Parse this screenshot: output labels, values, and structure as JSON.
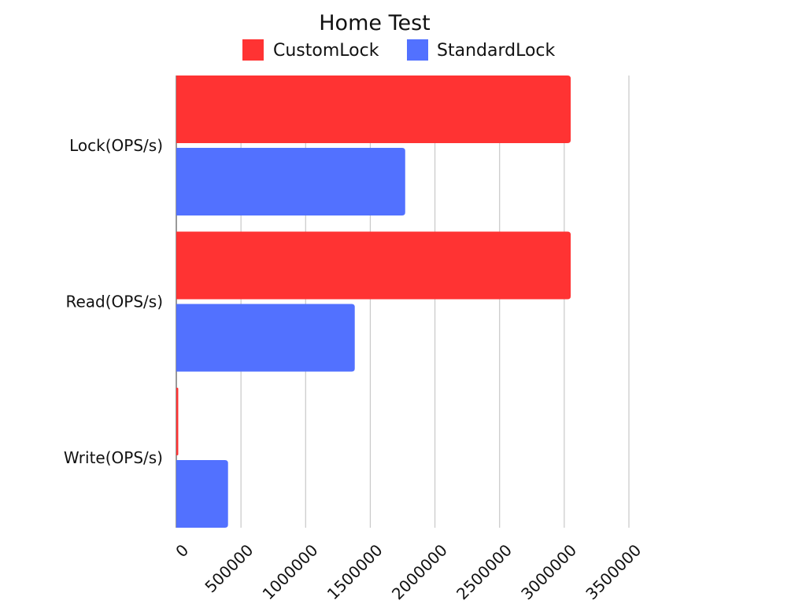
{
  "chart_data": {
    "type": "bar",
    "orientation": "horizontal",
    "title": "Home Test",
    "categories": [
      "Lock(OPS/s)",
      "Read(OPS/s)",
      "Write(OPS/s)"
    ],
    "series": [
      {
        "name": "CustomLock",
        "color": "#ff3333",
        "values": [
          3050000,
          3050000,
          15000
        ]
      },
      {
        "name": "StandardLock",
        "color": "#5271ff",
        "values": [
          1770000,
          1380000,
          400000
        ]
      }
    ],
    "x_ticks": [
      "0",
      "500000",
      "1000000",
      "1500000",
      "2000000",
      "2500000",
      "3000000",
      "3500000"
    ],
    "xlim": [
      0,
      3500000
    ],
    "grid": true,
    "legend_position": "top"
  }
}
